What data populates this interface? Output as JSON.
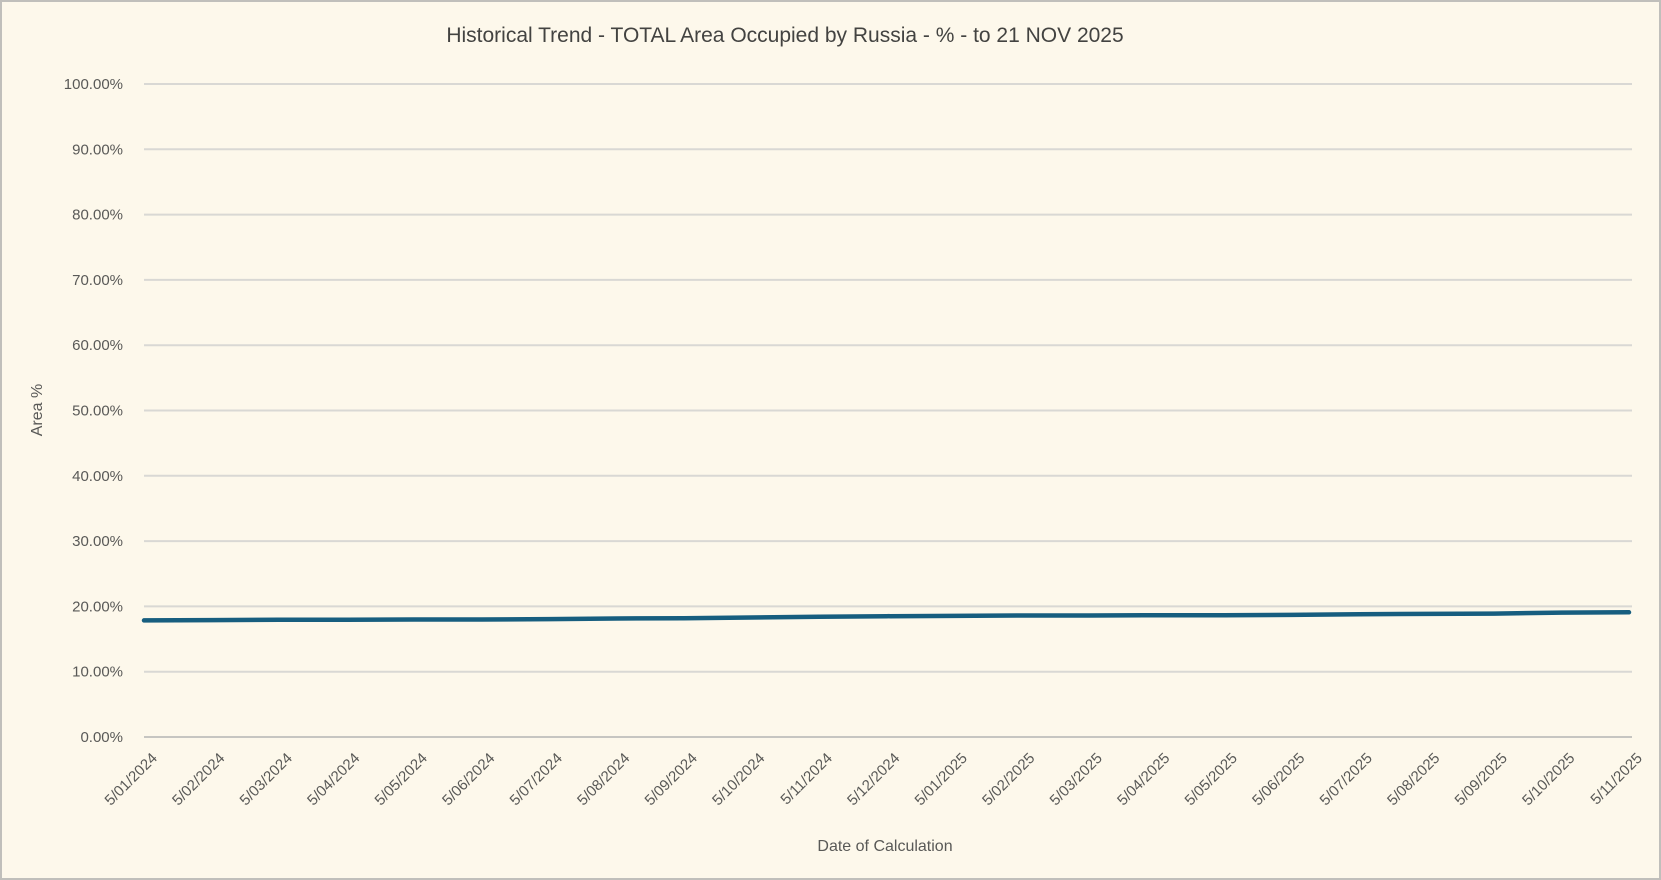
{
  "window": {
    "background_color": "#fdf8eb",
    "border_color": "#c0bfbb"
  },
  "chart_data": {
    "type": "line",
    "title": "Historical Trend - TOTAL Area Occupied by Russia - % - to 21 NOV 2025",
    "xlabel": "Date of Calculation",
    "ylabel": "Area %",
    "ylim": [
      0,
      100
    ],
    "grid": true,
    "legend": "none",
    "y_ticks": [
      {
        "value": 0,
        "label": "0.00%"
      },
      {
        "value": 10,
        "label": "10.00%"
      },
      {
        "value": 20,
        "label": "20.00%"
      },
      {
        "value": 30,
        "label": "30.00%"
      },
      {
        "value": 40,
        "label": "40.00%"
      },
      {
        "value": 50,
        "label": "50.00%"
      },
      {
        "value": 60,
        "label": "60.00%"
      },
      {
        "value": 70,
        "label": "70.00%"
      },
      {
        "value": 80,
        "label": "80.00%"
      },
      {
        "value": 90,
        "label": "90.00%"
      },
      {
        "value": 100,
        "label": "100.00%"
      }
    ],
    "categories": [
      "5/01/2024",
      "5/02/2024",
      "5/03/2024",
      "5/04/2024",
      "5/05/2024",
      "5/06/2024",
      "5/07/2024",
      "5/08/2024",
      "5/09/2024",
      "5/10/2024",
      "5/11/2024",
      "5/12/2024",
      "5/01/2025",
      "5/02/2025",
      "5/03/2025",
      "5/04/2025",
      "5/05/2025",
      "5/06/2025",
      "5/07/2025",
      "5/08/2025",
      "5/09/2025",
      "5/10/2025",
      "5/11/2025"
    ],
    "values": [
      17.85,
      17.9,
      17.95,
      17.95,
      18.0,
      18.0,
      18.05,
      18.15,
      18.2,
      18.3,
      18.4,
      18.5,
      18.55,
      18.6,
      18.6,
      18.65,
      18.65,
      18.7,
      18.8,
      18.85,
      18.9,
      19.05,
      19.1
    ],
    "colors": {
      "line": "#175e7f",
      "grid": "#d9d8d4",
      "zero_axis": "#c6c5c1",
      "tick_text": "#595957",
      "title_text": "#434341"
    }
  }
}
